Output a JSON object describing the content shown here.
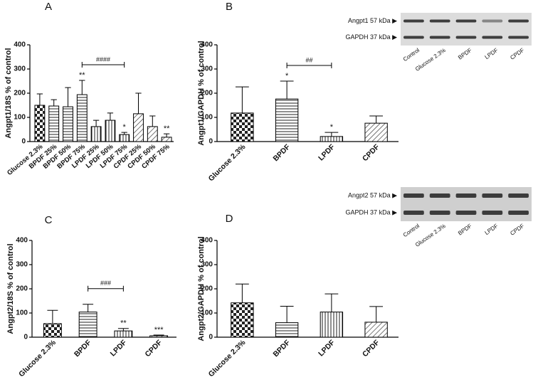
{
  "chart_data": [
    {
      "type": "bar",
      "label": "A",
      "y_label": "Angpt1/18S % of control",
      "categories": [
        "Glucose 2.3%",
        "BPDF 25%",
        "BPDF 50%",
        "BPDF 75%",
        "LPDF 25%",
        "LPDF 50%",
        "LPDF 75%",
        "CPDF 25%",
        "CPDF 50%",
        "CPDF 75%"
      ],
      "values": [
        150,
        147,
        144,
        194,
        62,
        88,
        29,
        115,
        62,
        18
      ],
      "errors": [
        47,
        26,
        79,
        59,
        26,
        30,
        9,
        85,
        44,
        14
      ],
      "patterns": [
        "checker",
        "hlines",
        "hlines",
        "hlines",
        "vlines",
        "vlines",
        "vlines",
        "diag",
        "diag",
        "diag"
      ],
      "ylim": [
        0,
        400
      ],
      "yticks": [
        0,
        100,
        200,
        300,
        400
      ],
      "annotations": [
        {
          "index": 3,
          "text": "**"
        },
        {
          "index": 6,
          "text": "*"
        },
        {
          "index": 9,
          "text": "**"
        }
      ],
      "brackets": [
        {
          "from": 3,
          "to": 6,
          "text": "####"
        }
      ]
    },
    {
      "type": "bar",
      "label": "B",
      "y_label": "Angpt1/GAPDH % of control",
      "categories": [
        "Glucose 2.3%",
        "BPDF",
        "LPDF",
        "CPDF"
      ],
      "values": [
        118,
        176,
        21,
        76
      ],
      "errors": [
        108,
        74,
        17,
        30
      ],
      "patterns": [
        "checker",
        "hlines",
        "vlines",
        "diag"
      ],
      "ylim": [
        0,
        400
      ],
      "yticks": [
        0,
        100,
        200,
        300,
        400
      ],
      "annotations": [
        {
          "index": 1,
          "text": "*"
        },
        {
          "index": 2,
          "text": "*"
        }
      ],
      "brackets": [
        {
          "from": 1,
          "to": 2,
          "text": "##"
        }
      ]
    },
    {
      "type": "bar",
      "label": "C",
      "y_label": "Angpt2/18S % of control",
      "categories": [
        "Glucose 2.3%",
        "BPDF",
        "LPDF",
        "CPDF"
      ],
      "values": [
        56,
        104,
        26,
        6
      ],
      "errors": [
        55,
        32,
        10,
        3
      ],
      "patterns": [
        "checker",
        "hlines",
        "vlines",
        "diag"
      ],
      "ylim": [
        0,
        400
      ],
      "yticks": [
        0,
        100,
        200,
        300,
        400
      ],
      "annotations": [
        {
          "index": 2,
          "text": "**"
        },
        {
          "index": 3,
          "text": "***"
        }
      ],
      "brackets": [
        {
          "from": 1,
          "to": 2,
          "text": "###"
        }
      ]
    },
    {
      "type": "bar",
      "label": "D",
      "y_label": "Angpt2/GAPDH % of control",
      "categories": [
        "Glucose 2.3%",
        "BPDF",
        "LPDF",
        "CPDF"
      ],
      "values": [
        142,
        60,
        104,
        62
      ],
      "errors": [
        78,
        68,
        75,
        65
      ],
      "patterns": [
        "checker",
        "hlines",
        "vlines",
        "diag"
      ],
      "ylim": [
        0,
        400
      ],
      "yticks": [
        0,
        100,
        200,
        300,
        400
      ],
      "annotations": [],
      "brackets": []
    }
  ],
  "blots": [
    {
      "rows": [
        "Angpt1 57 kDa ▶",
        "GAPDH 37 kDa ▶"
      ],
      "lanes": [
        "Control",
        "Glucose 2.3%",
        "BPDF",
        "LPDF",
        "CPDF"
      ]
    },
    {
      "rows": [
        "Angpt2 57 kDa ▶",
        "GAPDH 37 kDa ▶"
      ],
      "lanes": [
        "Control",
        "Glucose 2.3%",
        "BPDF",
        "LPDF",
        "CPDF"
      ]
    }
  ]
}
